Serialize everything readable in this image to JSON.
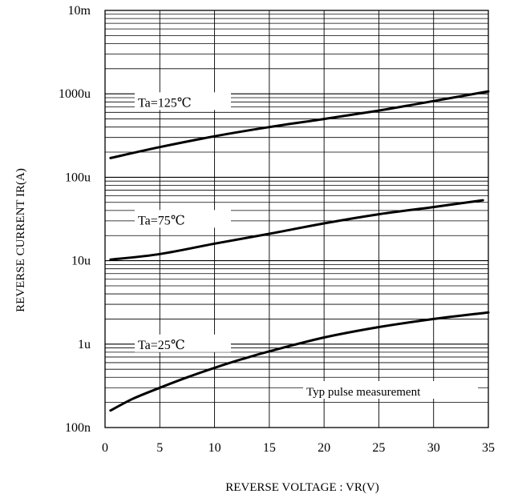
{
  "chart_data": {
    "type": "line",
    "xlabel": "REVERSE VOLTAGE : VR(V)",
    "ylabel": "REVERSE CURRENT     IR(A)",
    "xlim": [
      0,
      35
    ],
    "ylim": [
      1e-07,
      0.01
    ],
    "y_scale": "log",
    "grid": true,
    "x_ticks": [
      0,
      5,
      10,
      15,
      20,
      25,
      30,
      35
    ],
    "x_tick_labels": [
      "0",
      "5",
      "10",
      "15",
      "20",
      "25",
      "30",
      "35"
    ],
    "y_ticks": [
      1e-07,
      1e-06,
      1e-05,
      0.0001,
      0.001,
      0.01
    ],
    "y_tick_labels": [
      "100n",
      "1u",
      "10u",
      "100u",
      "1000u",
      "10m"
    ],
    "annotation": "Typ pulse measurement",
    "series": [
      {
        "name": "Ta=125℃",
        "x": [
          0.5,
          5,
          10,
          15,
          20,
          25,
          30,
          35
        ],
        "y": [
          0.00017,
          0.00023,
          0.00031,
          0.0004,
          0.0005,
          0.00063,
          0.00082,
          0.00107
        ],
        "label_at": [
          3,
          0.0008
        ]
      },
      {
        "name": "Ta=75℃",
        "x": [
          0.5,
          5,
          10,
          15,
          20,
          25,
          30,
          34.5
        ],
        "y": [
          1.03e-05,
          1.2e-05,
          1.6e-05,
          2.1e-05,
          2.8e-05,
          3.6e-05,
          4.4e-05,
          5.3e-05
        ],
        "label_at": [
          3,
          3.1e-05
        ]
      },
      {
        "name": "Ta=25℃",
        "x": [
          0.5,
          2.5,
          5,
          7.5,
          10,
          12.5,
          15,
          20,
          25,
          30,
          35
        ],
        "y": [
          1.6e-07,
          2.2e-07,
          3e-07,
          4e-07,
          5.2e-07,
          6.6e-07,
          8.2e-07,
          1.2e-06,
          1.6e-06,
          2e-06,
          2.4e-06
        ],
        "label_at": [
          3,
          1e-06
        ]
      }
    ]
  }
}
